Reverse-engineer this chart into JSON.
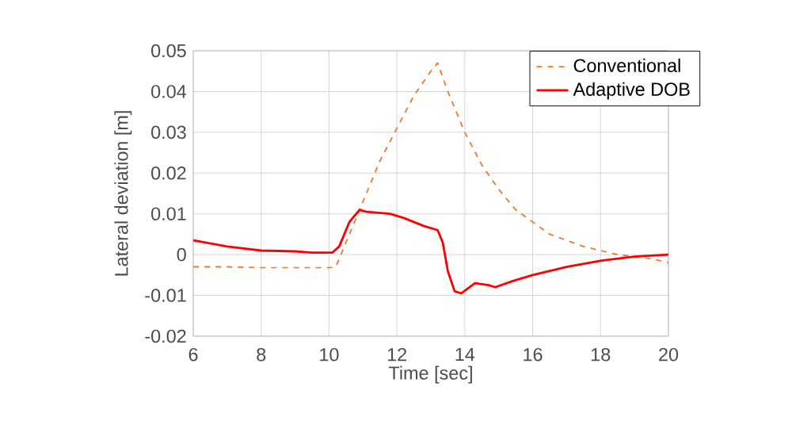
{
  "chart_data": {
    "type": "line",
    "xlabel": "Time [sec]",
    "ylabel": "Lateral deviation [m]",
    "xlim": [
      6,
      20
    ],
    "ylim": [
      -0.02,
      0.05
    ],
    "xticks": [
      6,
      8,
      10,
      12,
      14,
      16,
      18,
      20
    ],
    "yticks": [
      -0.02,
      -0.01,
      0,
      0.01,
      0.02,
      0.03,
      0.04,
      0.05
    ],
    "grid": true,
    "legend": "top right",
    "series": [
      {
        "name": "Conventional",
        "color": "#ed7d31",
        "line_style": "dashed",
        "x": [
          6,
          7,
          8,
          9,
          10,
          10.2,
          10.6,
          11,
          11.5,
          12,
          12.5,
          13,
          13.2,
          13.5,
          14,
          14.5,
          15,
          15.5,
          16,
          16.5,
          17,
          17.5,
          18,
          18.5,
          19,
          19.5,
          20
        ],
        "values": [
          -0.003,
          -0.003,
          -0.0032,
          -0.0032,
          -0.0032,
          -0.003,
          0.005,
          0.013,
          0.023,
          0.031,
          0.039,
          0.045,
          0.047,
          0.04,
          0.03,
          0.022,
          0.016,
          0.011,
          0.008,
          0.005,
          0.0035,
          0.002,
          0.001,
          0.0,
          -0.0005,
          -0.001,
          -0.002
        ]
      },
      {
        "name": "Adaptive DOB",
        "color": "#ff0000",
        "line_style": "solid",
        "x": [
          6,
          7,
          8,
          9,
          9.5,
          10.1,
          10.3,
          10.6,
          10.9,
          11.1,
          11.8,
          12.2,
          12.8,
          13.2,
          13.35,
          13.5,
          13.7,
          13.9,
          14.3,
          14.7,
          14.9,
          15.4,
          16,
          17,
          18,
          19,
          20
        ],
        "values": [
          0.0035,
          0.002,
          0.001,
          0.0008,
          0.0005,
          0.0005,
          0.002,
          0.008,
          0.011,
          0.0105,
          0.01,
          0.009,
          0.007,
          0.006,
          0.003,
          -0.004,
          -0.009,
          -0.0095,
          -0.007,
          -0.0075,
          -0.008,
          -0.0065,
          -0.005,
          -0.003,
          -0.0015,
          -0.0005,
          0.0
        ]
      }
    ]
  }
}
